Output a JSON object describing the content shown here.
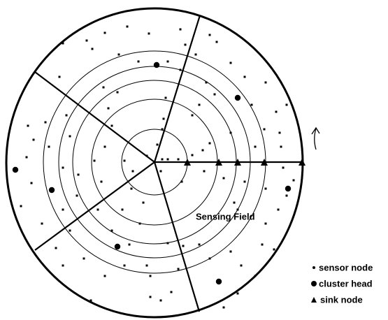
{
  "field_label": "Sensing Field",
  "legend": [
    "sensor node",
    "cluster head",
    "sink node"
  ]
}
